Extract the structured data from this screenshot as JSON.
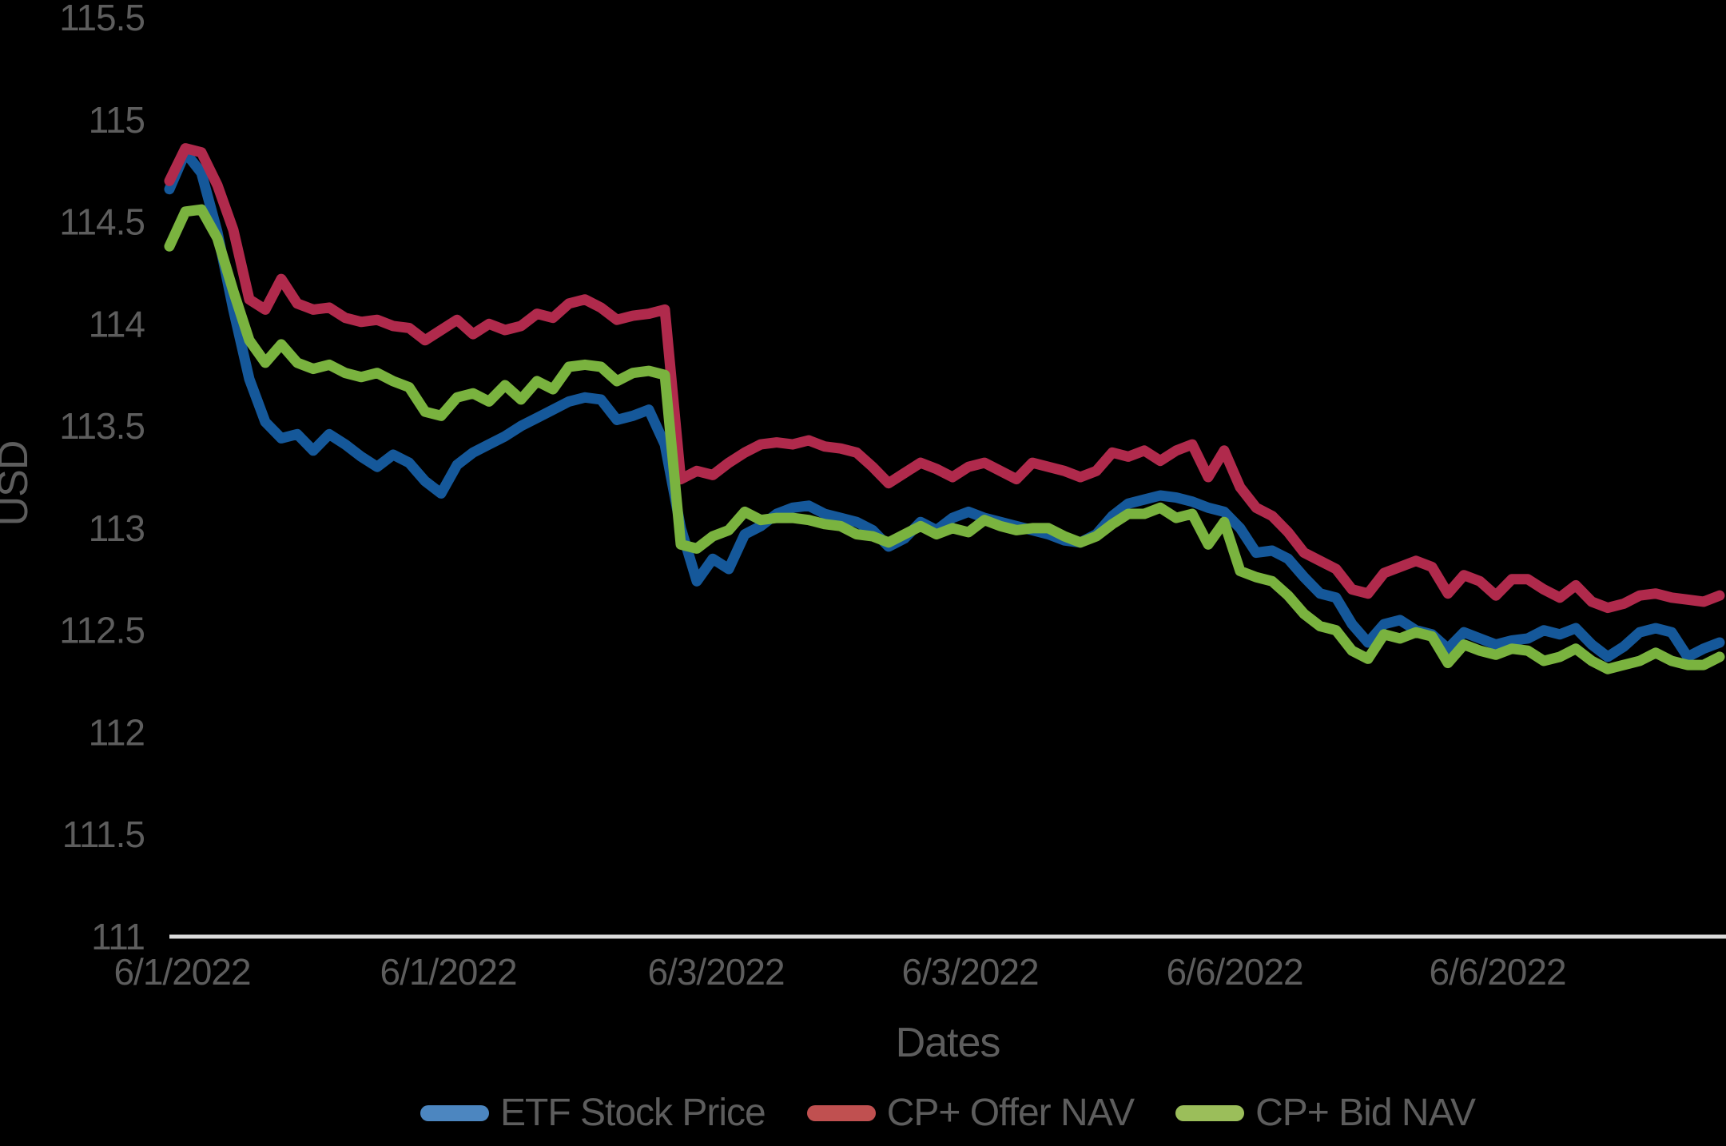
{
  "chart": {
    "y_title": "USD",
    "x_title": "Dates"
  },
  "chart_data": {
    "type": "line",
    "title": "",
    "xlabel": "Dates",
    "ylabel": "USD",
    "background": "#000000",
    "text_color": "#5d5d5d",
    "axis_line_color": "#dadada",
    "grid": false,
    "legend_position": "bottom-center",
    "ylim": [
      111,
      115.5
    ],
    "y_ticks": [
      111,
      111.5,
      112,
      112.5,
      113,
      113.5,
      114,
      114.5,
      115,
      115.5
    ],
    "y_tick_labels": [
      "111",
      "111.5",
      "112",
      "112.5",
      "113",
      "113.5",
      "114",
      "114.5",
      "115",
      "115.5"
    ],
    "x_tick_labels": [
      "6/1/2022",
      "6/1/2022",
      "6/3/2022",
      "6/3/2022",
      "6/6/2022",
      "6/6/2022"
    ],
    "x_tick_indices": [
      0.8,
      17.45,
      34.2,
      50.1,
      66.65,
      83.1
    ],
    "series": [
      {
        "name": "ETF Stock Price",
        "color": "#15589a",
        "legend_swatch_color": "#4c86c0",
        "values": [
          114.66,
          114.84,
          114.74,
          114.45,
          114.07,
          113.73,
          113.52,
          113.44,
          113.46,
          113.38,
          113.46,
          113.41,
          113.35,
          113.3,
          113.36,
          113.32,
          113.23,
          113.17,
          113.31,
          113.37,
          113.41,
          113.45,
          113.5,
          113.54,
          113.58,
          113.62,
          113.64,
          113.63,
          113.53,
          113.55,
          113.58,
          113.41,
          113.0,
          112.74,
          112.85,
          112.8,
          112.97,
          113.01,
          113.07,
          113.1,
          113.11,
          113.07,
          113.05,
          113.03,
          112.99,
          112.91,
          112.95,
          113.03,
          112.99,
          113.05,
          113.08,
          113.05,
          113.03,
          113.01,
          112.99,
          112.97,
          112.94,
          112.93,
          112.97,
          113.06,
          113.12,
          113.14,
          113.16,
          113.15,
          113.13,
          113.1,
          113.08,
          113.0,
          112.88,
          112.89,
          112.85,
          112.76,
          112.68,
          112.66,
          112.53,
          112.44,
          112.53,
          112.55,
          112.5,
          112.48,
          112.41,
          112.49,
          112.46,
          112.43,
          112.45,
          112.46,
          112.5,
          112.48,
          112.51,
          112.43,
          112.37,
          112.42,
          112.49,
          112.51,
          112.49,
          112.37,
          112.41,
          112.44
        ]
      },
      {
        "name": "CP+ Offer NAV",
        "color": "#b02a4c",
        "legend_swatch_color": "#c05050",
        "values": [
          114.7,
          114.86,
          114.84,
          114.68,
          114.46,
          114.12,
          114.07,
          114.22,
          114.1,
          114.07,
          114.08,
          114.03,
          114.01,
          114.02,
          113.99,
          113.98,
          113.92,
          113.97,
          114.02,
          113.95,
          114.0,
          113.97,
          113.99,
          114.05,
          114.03,
          114.1,
          114.12,
          114.08,
          114.02,
          114.04,
          114.05,
          114.07,
          113.24,
          113.28,
          113.26,
          113.32,
          113.37,
          113.41,
          113.42,
          113.41,
          113.43,
          113.4,
          113.39,
          113.37,
          113.3,
          113.22,
          113.27,
          113.32,
          113.29,
          113.25,
          113.3,
          113.32,
          113.28,
          113.24,
          113.32,
          113.3,
          113.28,
          113.25,
          113.28,
          113.37,
          113.35,
          113.38,
          113.33,
          113.38,
          113.41,
          113.25,
          113.38,
          113.2,
          113.1,
          113.06,
          112.98,
          112.88,
          112.84,
          112.8,
          112.7,
          112.68,
          112.78,
          112.81,
          112.84,
          112.81,
          112.68,
          112.77,
          112.74,
          112.67,
          112.75,
          112.75,
          112.7,
          112.66,
          112.72,
          112.64,
          112.61,
          112.63,
          112.67,
          112.68,
          112.66,
          112.65,
          112.64,
          112.67
        ]
      },
      {
        "name": "CP+ Bid NAV",
        "color": "#7ab33f",
        "legend_swatch_color": "#9bbe5a",
        "values": [
          114.38,
          114.55,
          114.56,
          114.42,
          114.16,
          113.92,
          113.81,
          113.9,
          113.81,
          113.78,
          113.8,
          113.76,
          113.74,
          113.76,
          113.72,
          113.69,
          113.57,
          113.55,
          113.64,
          113.66,
          113.62,
          113.7,
          113.63,
          113.72,
          113.68,
          113.79,
          113.8,
          113.79,
          113.72,
          113.76,
          113.77,
          113.75,
          112.92,
          112.9,
          112.96,
          112.99,
          113.08,
          113.04,
          113.05,
          113.05,
          113.04,
          113.02,
          113.01,
          112.97,
          112.96,
          112.93,
          112.97,
          113.01,
          112.97,
          113.0,
          112.98,
          113.04,
          113.01,
          112.99,
          113.0,
          113.0,
          112.96,
          112.93,
          112.96,
          113.02,
          113.07,
          113.07,
          113.1,
          113.05,
          113.07,
          112.92,
          113.03,
          112.79,
          112.76,
          112.74,
          112.67,
          112.58,
          112.52,
          112.5,
          112.4,
          112.36,
          112.48,
          112.46,
          112.49,
          112.47,
          112.34,
          112.43,
          112.4,
          112.38,
          112.41,
          112.4,
          112.35,
          112.37,
          112.41,
          112.35,
          112.31,
          112.33,
          112.35,
          112.39,
          112.35,
          112.33,
          112.33,
          112.37
        ]
      }
    ]
  }
}
